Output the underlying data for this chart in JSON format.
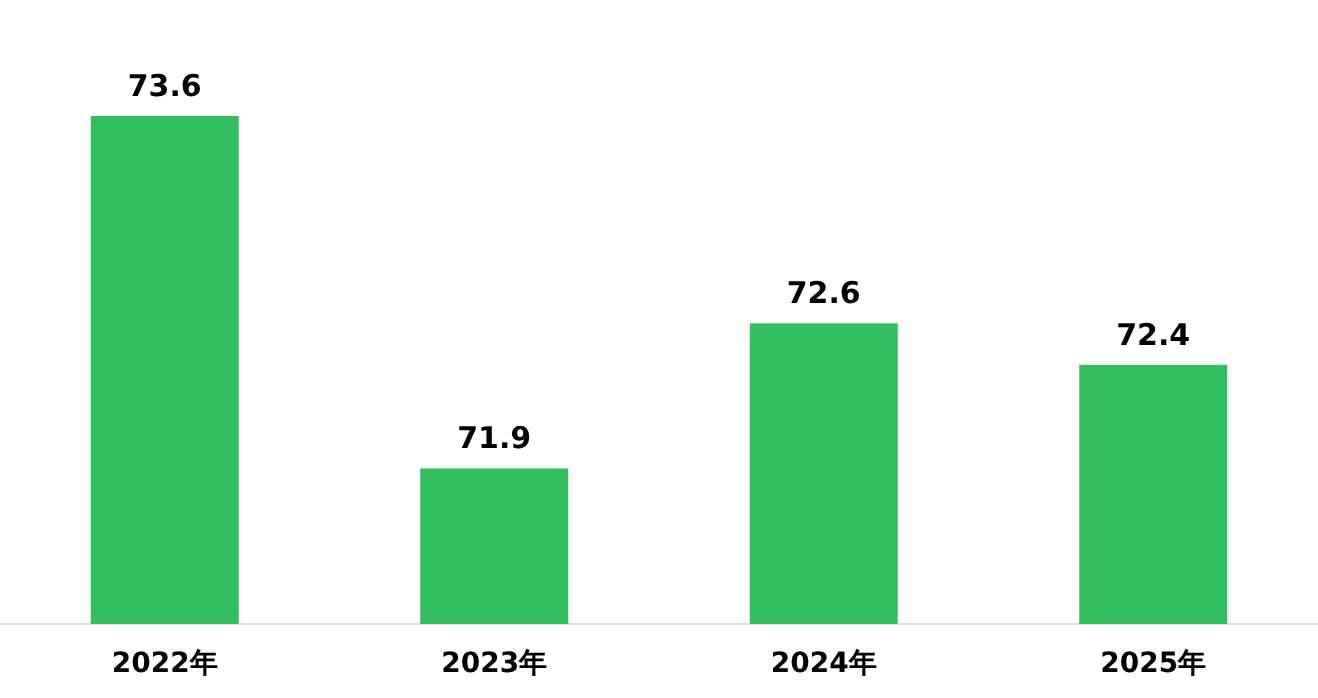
{
  "chart_data": {
    "type": "bar",
    "categories": [
      "2022年",
      "2023年",
      "2024年",
      "2025年"
    ],
    "values": [
      73.6,
      71.9,
      72.6,
      72.4
    ],
    "color": "#33bf5f",
    "data_labels": true,
    "ylim": [
      71.15,
      73.6
    ]
  }
}
